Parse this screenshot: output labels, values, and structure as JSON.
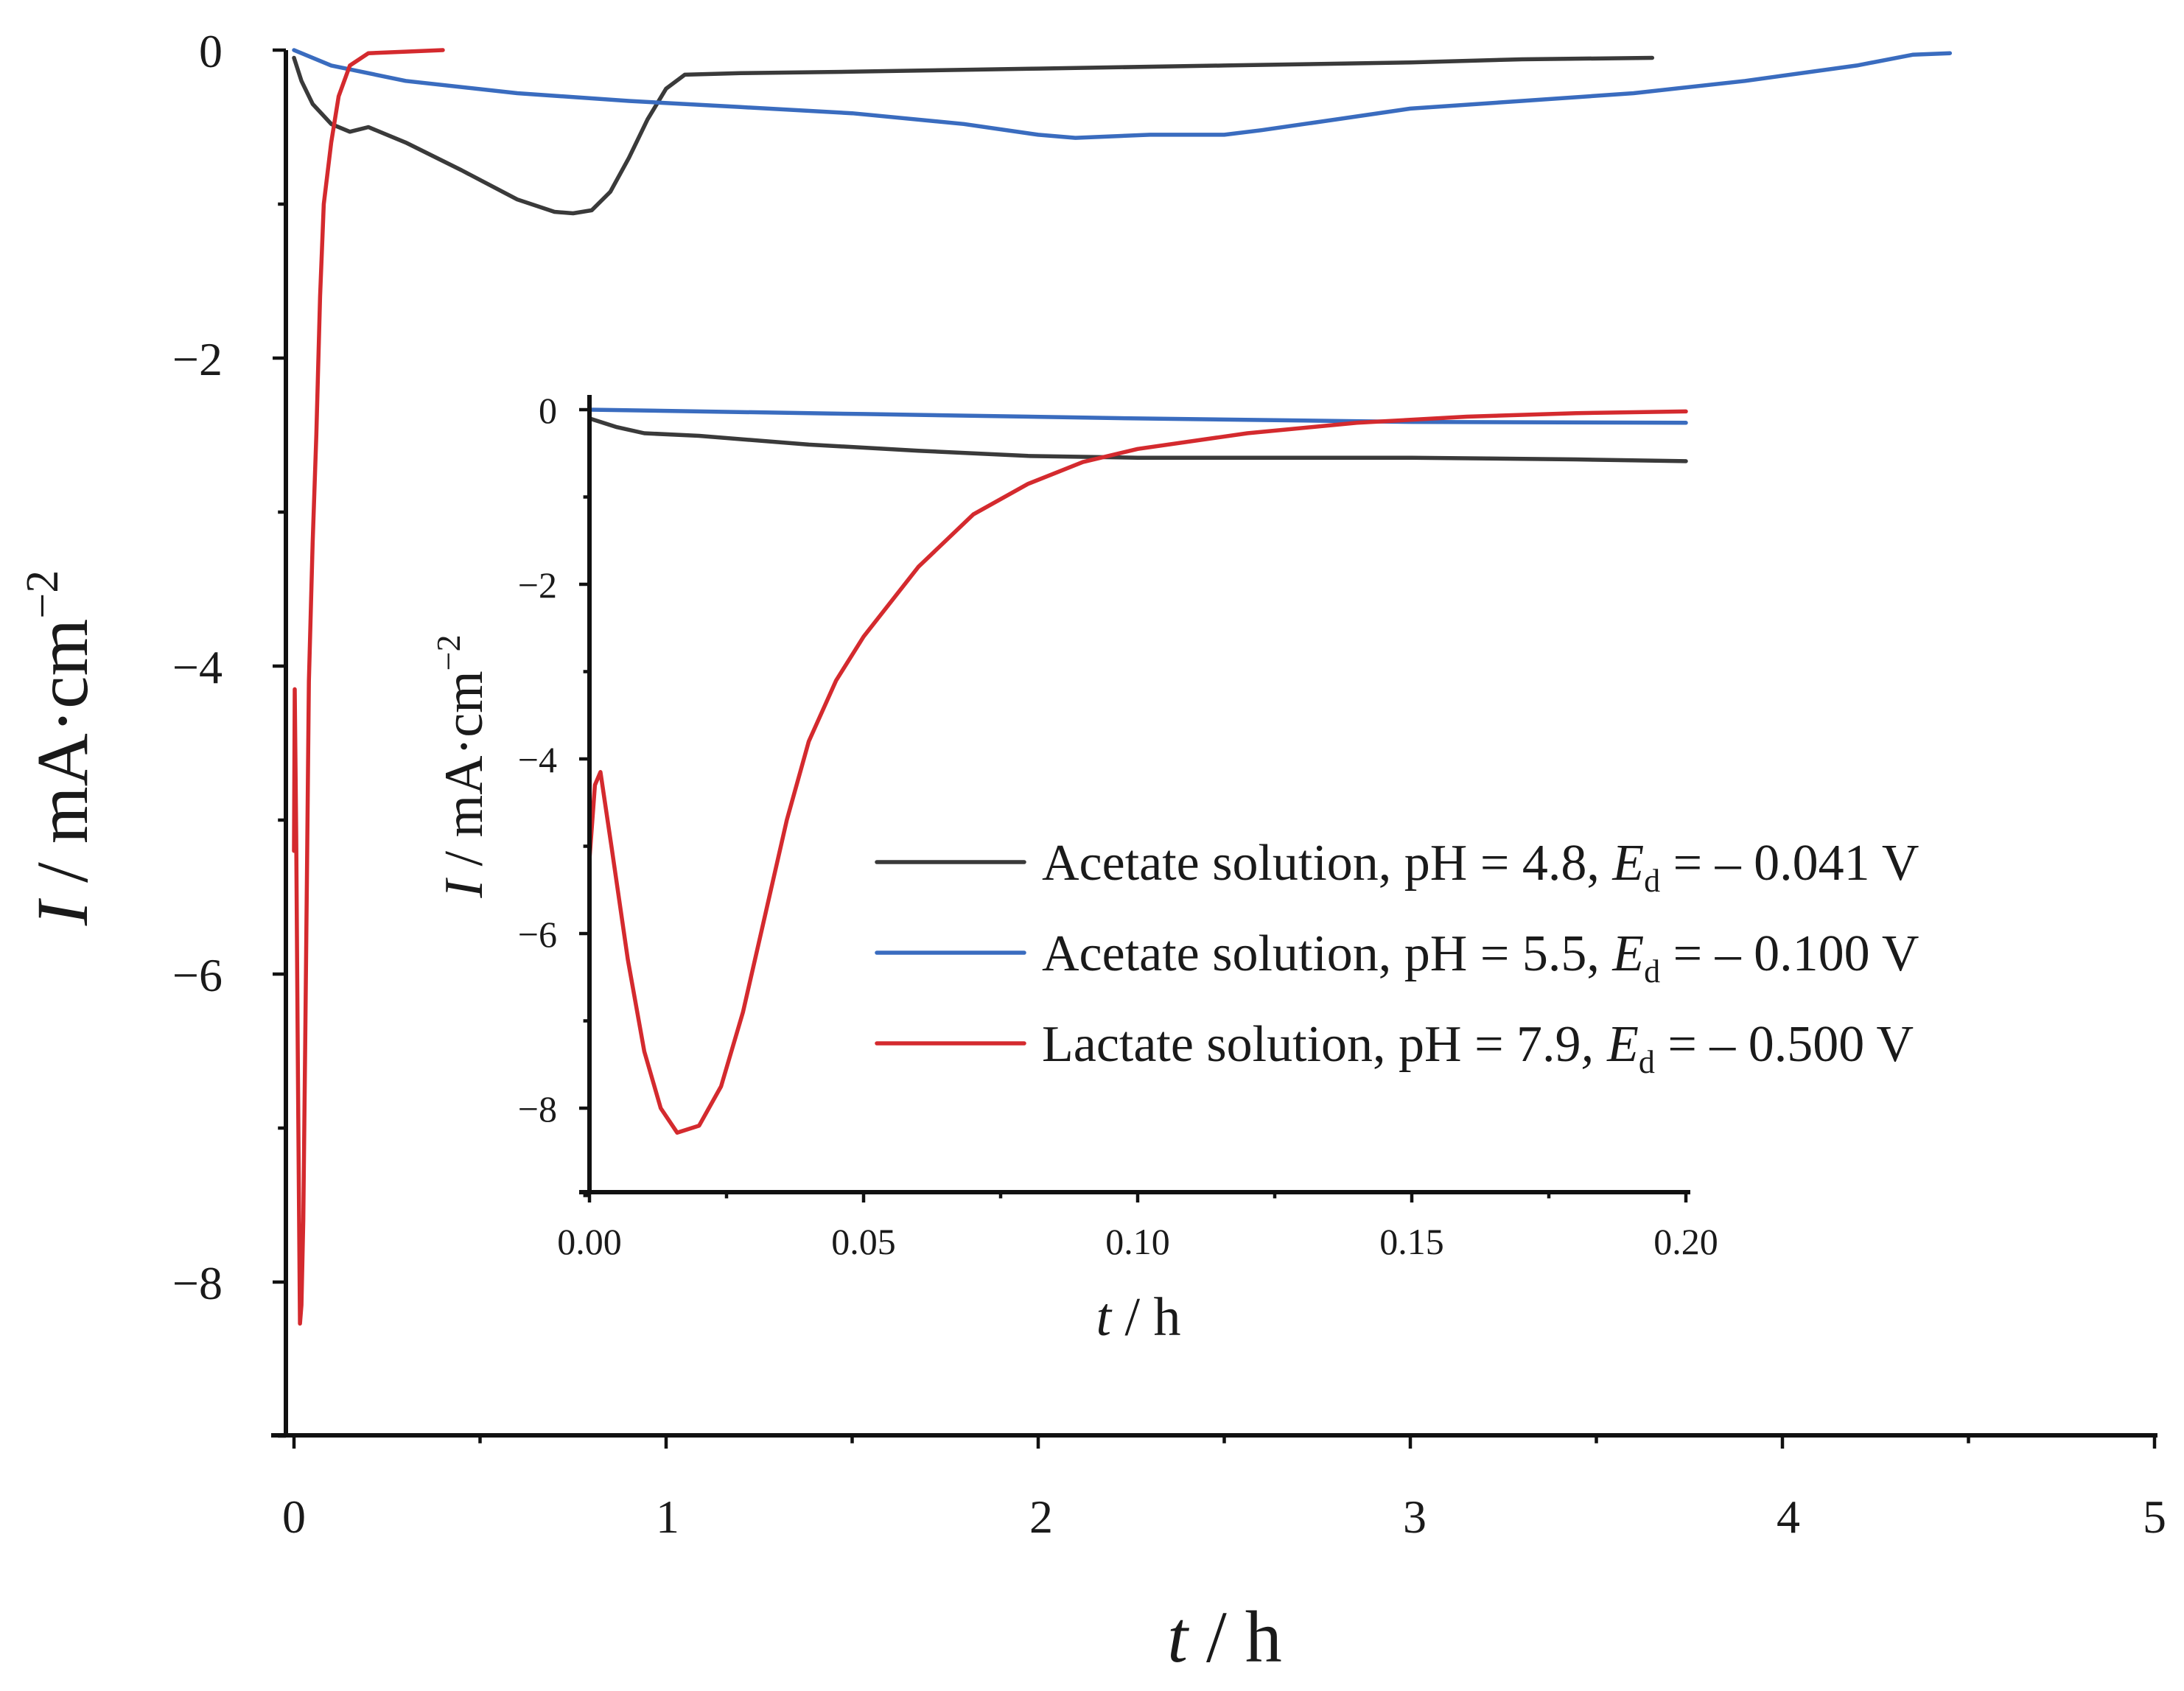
{
  "chart_data": [
    {
      "id": "main",
      "type": "line",
      "xlabel": {
        "var": "t",
        "unit": " / h"
      },
      "ylabel": {
        "var": "I",
        "unit": " / mA·cm",
        "sup": "−2"
      },
      "xlim": [
        0,
        5
      ],
      "ylim": [
        -9,
        0
      ],
      "xticks": [
        0,
        1,
        2,
        3,
        4,
        5
      ],
      "xtick_labels": [
        "0",
        "1",
        "2",
        "3",
        "4",
        "5"
      ],
      "yticks": [
        0,
        -2,
        -4,
        -6,
        -8
      ],
      "ytick_labels": [
        "0",
        "−2",
        "−4",
        "−6",
        "−8"
      ],
      "series": [
        {
          "name": "Acetate solution, pH = 4.8, Ed = – 0.041 V",
          "color": "#3a3a3a",
          "points": [
            [
              0,
              -0.05
            ],
            [
              0.02,
              -0.2
            ],
            [
              0.05,
              -0.35
            ],
            [
              0.1,
              -0.48
            ],
            [
              0.15,
              -0.53
            ],
            [
              0.2,
              -0.5
            ],
            [
              0.3,
              -0.6
            ],
            [
              0.45,
              -0.78
            ],
            [
              0.6,
              -0.97
            ],
            [
              0.7,
              -1.05
            ],
            [
              0.75,
              -1.06
            ],
            [
              0.8,
              -1.04
            ],
            [
              0.85,
              -0.92
            ],
            [
              0.9,
              -0.7
            ],
            [
              0.95,
              -0.45
            ],
            [
              1.0,
              -0.25
            ],
            [
              1.05,
              -0.16
            ],
            [
              1.2,
              -0.15
            ],
            [
              1.5,
              -0.14
            ],
            [
              2.0,
              -0.12
            ],
            [
              2.5,
              -0.1
            ],
            [
              3.0,
              -0.08
            ],
            [
              3.3,
              -0.06
            ],
            [
              3.65,
              -0.05
            ]
          ]
        },
        {
          "name": "Acetate solution, pH = 5.5, Ed = – 0.100 V",
          "color": "#3a6cbf",
          "points": [
            [
              0,
              0
            ],
            [
              0.1,
              -0.1
            ],
            [
              0.3,
              -0.2
            ],
            [
              0.6,
              -0.28
            ],
            [
              0.9,
              -0.33
            ],
            [
              1.2,
              -0.37
            ],
            [
              1.5,
              -0.41
            ],
            [
              1.8,
              -0.48
            ],
            [
              2.0,
              -0.55
            ],
            [
              2.1,
              -0.57
            ],
            [
              2.3,
              -0.55
            ],
            [
              2.5,
              -0.55
            ],
            [
              2.6,
              -0.52
            ],
            [
              2.8,
              -0.45
            ],
            [
              3.0,
              -0.38
            ],
            [
              3.3,
              -0.33
            ],
            [
              3.6,
              -0.28
            ],
            [
              3.9,
              -0.2
            ],
            [
              4.2,
              -0.1
            ],
            [
              4.35,
              -0.03
            ],
            [
              4.45,
              -0.02
            ]
          ]
        },
        {
          "name": "Lactate solution, pH = 7.9, Ed = – 0.500 V",
          "color": "#d42a2e",
          "points": [
            [
              0,
              -5.2
            ],
            [
              0.002,
              -4.15
            ],
            [
              0.006,
              -5.1
            ],
            [
              0.01,
              -6.5
            ],
            [
              0.014,
              -7.7
            ],
            [
              0.016,
              -8.27
            ],
            [
              0.02,
              -8.15
            ],
            [
              0.025,
              -7.6
            ],
            [
              0.03,
              -6.5
            ],
            [
              0.035,
              -5.3
            ],
            [
              0.04,
              -4.1
            ],
            [
              0.05,
              -3.2
            ],
            [
              0.06,
              -2.5
            ],
            [
              0.07,
              -1.6
            ],
            [
              0.08,
              -1.0
            ],
            [
              0.1,
              -0.6
            ],
            [
              0.12,
              -0.3
            ],
            [
              0.15,
              -0.1
            ],
            [
              0.2,
              -0.02
            ],
            [
              0.3,
              -0.01
            ],
            [
              0.4,
              0
            ]
          ]
        }
      ]
    },
    {
      "id": "inset",
      "type": "line",
      "xlabel": {
        "var": "t",
        "unit": " / h"
      },
      "ylabel": {
        "var": "I",
        "unit": " / mA·cm",
        "sup": "−2"
      },
      "xlim": [
        0,
        0.2
      ],
      "ylim": [
        -9,
        0.2
      ],
      "xticks": [
        0,
        0.05,
        0.1,
        0.15,
        0.2
      ],
      "xtick_labels": [
        "0.00",
        "0.05",
        "0.10",
        "0.15",
        "0.20"
      ],
      "yticks": [
        0,
        -2,
        -4,
        -6,
        -8
      ],
      "ytick_labels": [
        "0",
        "−2",
        "−4",
        "−6",
        "−8"
      ],
      "series": [
        {
          "name": "Acetate solution, pH = 4.8, Ed = – 0.041 V",
          "color": "#3a3a3a",
          "points": [
            [
              0,
              -0.1
            ],
            [
              0.005,
              -0.2
            ],
            [
              0.01,
              -0.27
            ],
            [
              0.02,
              -0.3
            ],
            [
              0.04,
              -0.4
            ],
            [
              0.06,
              -0.47
            ],
            [
              0.08,
              -0.53
            ],
            [
              0.1,
              -0.55
            ],
            [
              0.12,
              -0.55
            ],
            [
              0.15,
              -0.55
            ],
            [
              0.18,
              -0.57
            ],
            [
              0.2,
              -0.59
            ]
          ]
        },
        {
          "name": "Acetate solution, pH = 5.5, Ed = – 0.100 V",
          "color": "#3a6cbf",
          "points": [
            [
              0,
              0
            ],
            [
              0.05,
              -0.05
            ],
            [
              0.1,
              -0.1
            ],
            [
              0.15,
              -0.14
            ],
            [
              0.2,
              -0.15
            ]
          ]
        },
        {
          "name": "Lactate solution, pH = 7.9, Ed = – 0.500 V",
          "color": "#d42a2e",
          "points": [
            [
              0,
              -5.15
            ],
            [
              0.001,
              -4.3
            ],
            [
              0.002,
              -4.15
            ],
            [
              0.004,
              -5.0
            ],
            [
              0.007,
              -6.3
            ],
            [
              0.01,
              -7.35
            ],
            [
              0.013,
              -8.0
            ],
            [
              0.016,
              -8.28
            ],
            [
              0.02,
              -8.2
            ],
            [
              0.024,
              -7.75
            ],
            [
              0.028,
              -6.9
            ],
            [
              0.032,
              -5.8
            ],
            [
              0.036,
              -4.7
            ],
            [
              0.04,
              -3.8
            ],
            [
              0.045,
              -3.1
            ],
            [
              0.05,
              -2.6
            ],
            [
              0.06,
              -1.8
            ],
            [
              0.07,
              -1.2
            ],
            [
              0.08,
              -0.85
            ],
            [
              0.09,
              -0.6
            ],
            [
              0.1,
              -0.45
            ],
            [
              0.12,
              -0.27
            ],
            [
              0.14,
              -0.15
            ],
            [
              0.16,
              -0.08
            ],
            [
              0.18,
              -0.04
            ],
            [
              0.2,
              -0.02
            ]
          ]
        }
      ]
    }
  ],
  "legend": {
    "placement": "center-right",
    "entries": [
      {
        "label": "Acetate solution, pH = 4.8, ",
        "label_italic": "",
        "e_sym": "E",
        "e_sub": "d",
        "tail": " = – 0.041 V",
        "color": "#3a3a3a"
      },
      {
        "label": "Acetate solution, pH = 5.5, ",
        "label_italic": "",
        "e_sym": "E",
        "e_sub": "d",
        "tail": " = – 0.100 V",
        "color": "#3a6cbf"
      },
      {
        "label": "Lactate solution, pH = 7.9",
        "label_italic": ",",
        "e_sym": "E",
        "e_sub": "d",
        "tail": " = – 0.500 V",
        "color": "#d42a2e"
      }
    ]
  }
}
